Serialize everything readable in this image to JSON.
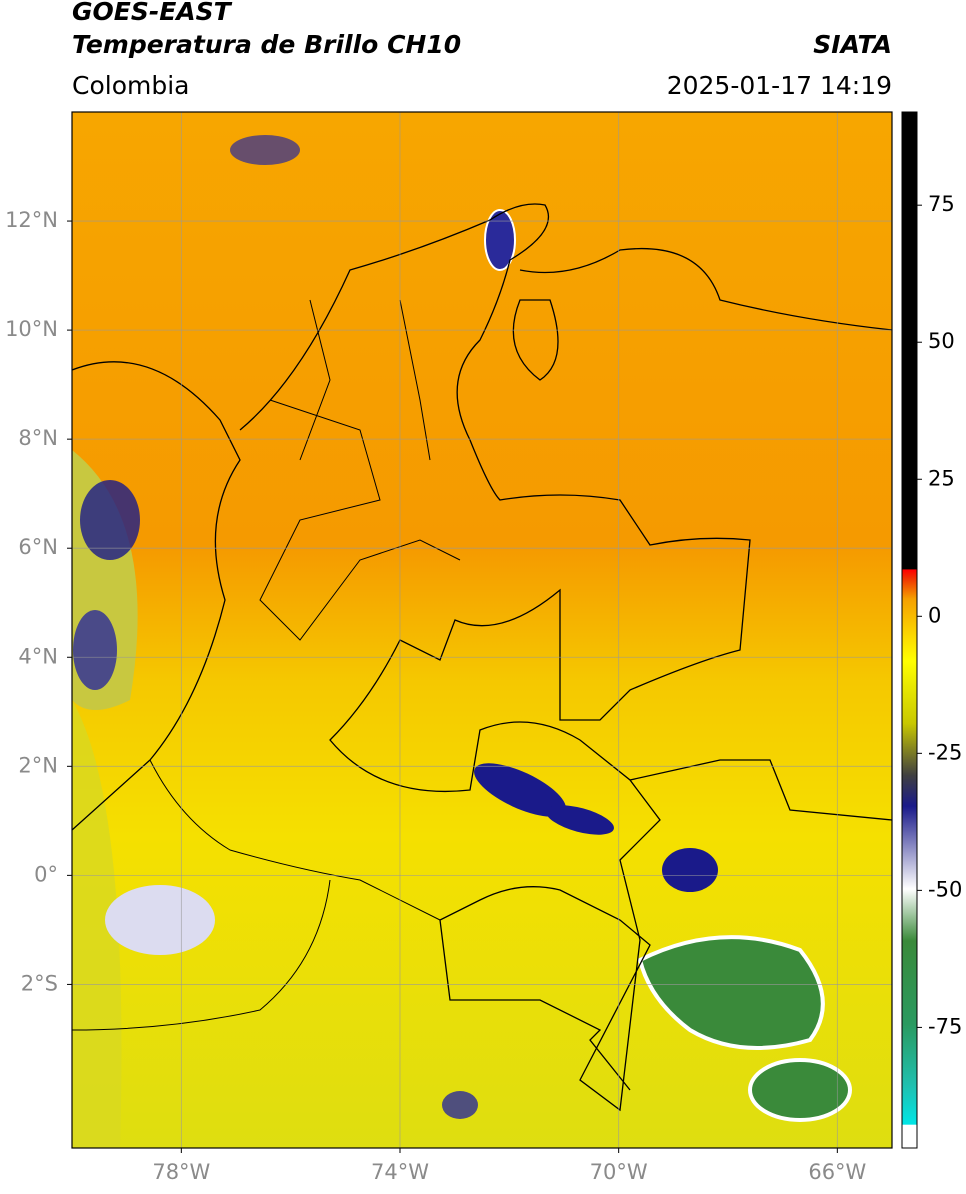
{
  "header": {
    "title": "GOES-EAST",
    "subtitle": "Temperatura de Brillo CH10",
    "region": "Colombia",
    "source": "SIATA",
    "datetime": "2025-01-17 14:19"
  },
  "map": {
    "lonlim": [
      -80,
      -65
    ],
    "latlim": [
      -5,
      14
    ],
    "lon_ticks": [
      {
        "value": -78,
        "label": "78°W"
      },
      {
        "value": -74,
        "label": "74°W"
      },
      {
        "value": -70,
        "label": "70°W"
      },
      {
        "value": -66,
        "label": "66°W"
      }
    ],
    "lat_ticks": [
      {
        "value": 12,
        "label": "12°N"
      },
      {
        "value": 10,
        "label": "10°N"
      },
      {
        "value": 8,
        "label": "8°N"
      },
      {
        "value": 6,
        "label": "6°N"
      },
      {
        "value": 4,
        "label": "4°N"
      },
      {
        "value": 2,
        "label": "2°N"
      },
      {
        "value": 0,
        "label": "0°"
      },
      {
        "value": -2,
        "label": "2°S"
      }
    ],
    "grid": true
  },
  "colorbar": {
    "lim": [
      -97,
      92
    ],
    "ticks": [
      75,
      50,
      25,
      0,
      -25,
      -50,
      -75
    ]
  }
}
